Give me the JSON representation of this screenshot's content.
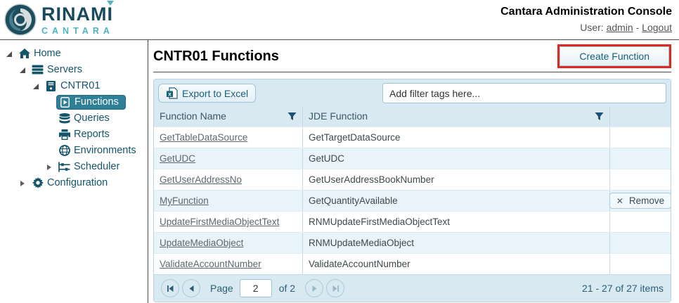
{
  "header": {
    "logo": {
      "line1": "RINAMI",
      "line2": "CANTARA"
    },
    "title": "Cantara Administration Console",
    "user_label": "User:",
    "user_name": "admin",
    "separator": "-",
    "logout": "Logout"
  },
  "sidebar": {
    "items": [
      {
        "label": "Home",
        "icon": "home",
        "level": 0,
        "expander": "expanded"
      },
      {
        "label": "Servers",
        "icon": "servers",
        "level": 1,
        "expander": "expanded"
      },
      {
        "label": "CNTR01",
        "icon": "server",
        "level": 2,
        "expander": "expanded"
      },
      {
        "label": "Functions",
        "icon": "functions",
        "level": 3,
        "selected": true
      },
      {
        "label": "Queries",
        "icon": "queries",
        "level": 3
      },
      {
        "label": "Reports",
        "icon": "reports",
        "level": 3
      },
      {
        "label": "Environments",
        "icon": "environments",
        "level": 3
      },
      {
        "label": "Scheduler",
        "icon": "scheduler",
        "level": 3,
        "expander": "collapsed"
      },
      {
        "label": "Configuration",
        "icon": "configuration",
        "level": 1,
        "expander": "collapsed"
      }
    ]
  },
  "main": {
    "title": "CNTR01 Functions",
    "create_button": "Create Function"
  },
  "grid": {
    "export_button": "Export to Excel",
    "filter_placeholder": "Add filter tags here...",
    "columns": [
      "Function Name",
      "JDE Function",
      ""
    ],
    "rows": [
      {
        "name": "GetTableDataSource",
        "jde": "GetTargetDataSource"
      },
      {
        "name": "GetUDC",
        "jde": "GetUDC"
      },
      {
        "name": "GetUserAddressNo",
        "jde": "GetUserAddressBookNumber"
      },
      {
        "name": "MyFunction",
        "jde": "GetQuantityAvailable",
        "action": "Remove"
      },
      {
        "name": "UpdateFirstMediaObjectText",
        "jde": "RNMUpdateFirstMediaObjectText"
      },
      {
        "name": "UpdateMediaObject",
        "jde": "RNMUpdateMediaObject"
      },
      {
        "name": "ValidateAccountNumber",
        "jde": "ValidateAccountNumber"
      }
    ],
    "pager": {
      "page_label": "Page",
      "page_value": "2",
      "of_label": "of 2",
      "items_text": "21 - 27 of 27 items"
    }
  },
  "colors": {
    "accent_teal": "#2e7f97",
    "dark_teal": "#17607a",
    "logo_dark": "#18495c",
    "logo_light": "#4db2c4",
    "chrome_blue": "#d9e9f2",
    "alt_row": "#e9f4fa",
    "highlight_red": "#e0291e"
  }
}
